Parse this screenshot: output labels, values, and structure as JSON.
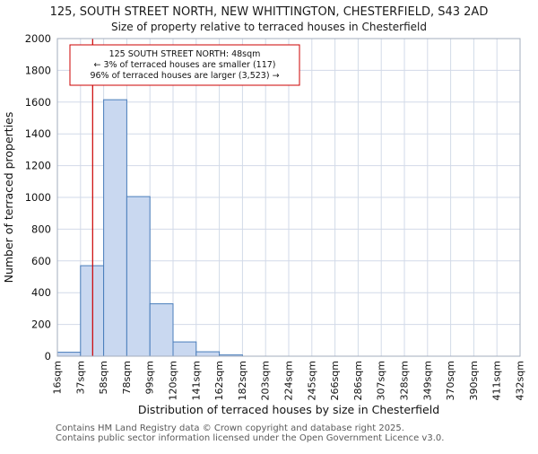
{
  "title": {
    "line1": "125, SOUTH STREET NORTH, NEW WHITTINGTON, CHESTERFIELD, S43 2AD",
    "line2": "Size of property relative to terraced houses in Chesterfield"
  },
  "chart_data": {
    "type": "bar",
    "title": "125, SOUTH STREET NORTH, NEW WHITTINGTON, CHESTERFIELD, S43 2AD",
    "subtitle": "Size of property relative to terraced houses in Chesterfield",
    "xlabel": "Distribution of terraced houses by size in Chesterfield",
    "ylabel": "Number of terraced properties",
    "categories": [
      "16sqm",
      "37sqm",
      "58sqm",
      "78sqm",
      "99sqm",
      "120sqm",
      "141sqm",
      "162sqm",
      "182sqm",
      "203sqm",
      "224sqm",
      "245sqm",
      "266sqm",
      "286sqm",
      "307sqm",
      "328sqm",
      "349sqm",
      "370sqm",
      "390sqm",
      "411sqm",
      "432sqm"
    ],
    "bin_edges_sqm": [
      16,
      37,
      58,
      78,
      99,
      120,
      141,
      162,
      182,
      203,
      224,
      245,
      266,
      286,
      307,
      328,
      349,
      370,
      390,
      411,
      432
    ],
    "values": [
      25,
      570,
      1615,
      1005,
      330,
      90,
      28,
      8,
      0,
      0,
      0,
      0,
      0,
      0,
      0,
      0,
      0,
      0,
      0,
      0
    ],
    "ylim": [
      0,
      2000
    ],
    "yticks": [
      0,
      200,
      400,
      600,
      800,
      1000,
      1200,
      1400,
      1600,
      1800,
      2000
    ],
    "grid": true,
    "legend": "none",
    "bar_fill": "#c9d8f0",
    "bar_stroke": "#4a7ebb",
    "grid_color": "#d2dae8",
    "spine_color": "#a3adbd",
    "marker": {
      "value_sqm": 48,
      "color": "#cc0000",
      "label_lines": [
        "125 SOUTH STREET NORTH: 48sqm",
        "← 3% of terraced houses are smaller (117)",
        "96% of terraced houses are larger (3,523) →"
      ]
    }
  },
  "footer": {
    "line1": "Contains HM Land Registry data © Crown copyright and database right 2025.",
    "line2": "Contains public sector information licensed under the Open Government Licence v3.0."
  }
}
